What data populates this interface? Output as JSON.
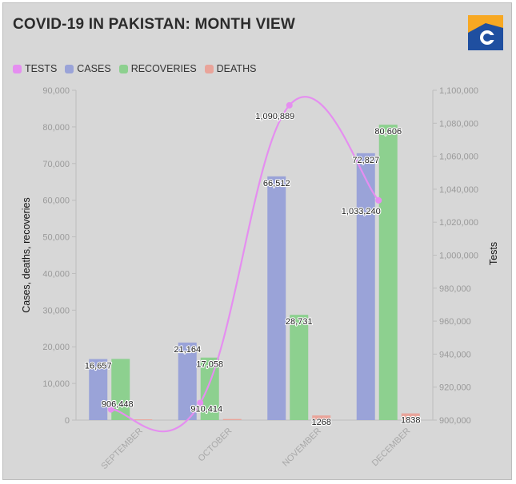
{
  "header": {
    "title": "COVID-19 IN PAKISTAN: MONTH VIEW",
    "logo_icon": "geo-news-logo"
  },
  "legend": [
    {
      "label": "TESTS",
      "color": "#e58ef0"
    },
    {
      "label": "CASES",
      "color": "#9aa3d8"
    },
    {
      "label": "RECOVERIES",
      "color": "#8dd08f"
    },
    {
      "label": "DEATHS",
      "color": "#e9a49a"
    }
  ],
  "chart_data": {
    "type": "bar",
    "categories": [
      "SEPTEMBER",
      "OCTOBER",
      "NOVEMBER",
      "DECEMBER"
    ],
    "series": [
      {
        "name": "CASES",
        "values": [
          16657,
          21164,
          66512,
          72827
        ],
        "labels": [
          "16,657",
          "21,164",
          "66,512",
          "72,827"
        ],
        "color": "#9aa3d8",
        "axis": "left"
      },
      {
        "name": "RECOVERIES",
        "values": [
          16700,
          17058,
          28731,
          80606
        ],
        "labels": [
          "",
          "17,058",
          "28,731",
          "80,606"
        ],
        "color": "#8dd08f",
        "axis": "left"
      },
      {
        "name": "DEATHS",
        "values": [
          200,
          300,
          1268,
          1838
        ],
        "labels": [
          "",
          "",
          "1268",
          "1838"
        ],
        "color": "#e9a49a",
        "axis": "left"
      }
    ],
    "line_series": {
      "name": "TESTS",
      "values": [
        906448,
        910414,
        1090889,
        1033240
      ],
      "labels": [
        "906,448",
        "910,414",
        "1,090,889",
        "1,033,240"
      ],
      "color": "#e58ef0",
      "axis": "right"
    },
    "ylabel": "Cases, deaths, recoveries",
    "y2label": "Tests",
    "ylim": [
      0,
      90000
    ],
    "yticks": [
      "0",
      "10,000",
      "20,000",
      "30,000",
      "40,000",
      "50,000",
      "60,000",
      "70,000",
      "80,000",
      "90,000"
    ],
    "y2lim": [
      900000,
      1100000
    ],
    "y2ticks": [
      "900,000",
      "920,000",
      "940,000",
      "960,000",
      "980,000",
      "1,000,000",
      "1,020,000",
      "1,040,000",
      "1,060,000",
      "1,080,000",
      "1,100,000"
    ],
    "grid": false,
    "legend_position": "top-left"
  }
}
